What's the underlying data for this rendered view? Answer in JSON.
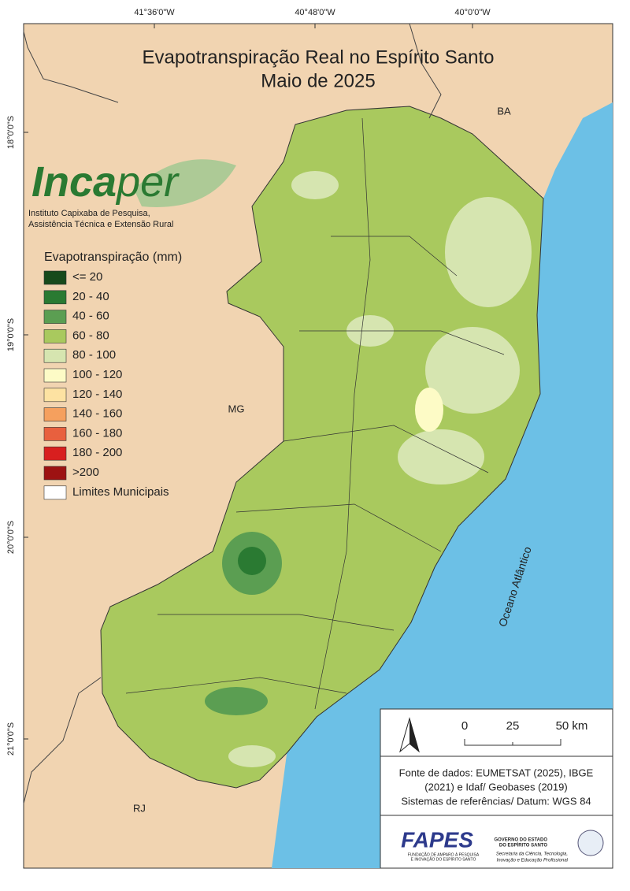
{
  "map": {
    "title": [
      "Evapotranspiração Real no Espírito Santo",
      "Maio de 2025"
    ],
    "longitude_labels": [
      "41°36'0\"W",
      "40°48'0\"W",
      "40°0'0\"W"
    ],
    "latitude_labels": [
      "18°0'0\"S",
      "19°0'0\"S",
      "20°0'0\"S",
      "21°0'0\"S"
    ],
    "logo": {
      "name_part1": "Inca",
      "name_part2": "per",
      "subtitle": [
        "Instituto Capixaba de Pesquisa,",
        "Assistência Técnica e Extensão Rural"
      ]
    },
    "legend": {
      "title": "Evapotranspiração (mm)",
      "items": [
        {
          "label": "<= 20",
          "color": "#174a1b"
        },
        {
          "label": "20 - 40",
          "color": "#2a7a32"
        },
        {
          "label": "40 - 60",
          "color": "#5b9e52"
        },
        {
          "label": "60 - 80",
          "color": "#a9c95e"
        },
        {
          "label": "80 - 100",
          "color": "#d6e5b0"
        },
        {
          "label": "100 - 120",
          "color": "#fdfbc6"
        },
        {
          "label": "120 - 140",
          "color": "#fde2a2"
        },
        {
          "label": "140 - 160",
          "color": "#f5a05e"
        },
        {
          "label": "160 - 180",
          "color": "#e8603e"
        },
        {
          "label": "180 - 200",
          "color": "#d81f1f"
        },
        {
          "label": ">200",
          "color": "#9d1212"
        },
        {
          "label": "Limites Municipais",
          "color": "#ffffff"
        }
      ]
    },
    "places": {
      "ba": "BA",
      "mg": "MG",
      "rj": "RJ",
      "ocean": "Oceano Atlântico"
    },
    "scale": [
      "0",
      "25",
      "50 km"
    ],
    "source": [
      "Fonte de dados: EUMETSAT (2025), IBGE",
      "(2021) e Idaf/ Geobases (2019)",
      "Sistemas de referências/ Datum: WGS 84"
    ],
    "footer": {
      "fapes": "FAPES",
      "fapes_sub": [
        "FUNDAÇÃO DE AMPARO À PESQUISA",
        "E INOVAÇÃO DO ESPÍRITO SANTO"
      ],
      "gov": [
        "GOVERNO DO ESTADO",
        "DO ESPÍRITO SANTO"
      ],
      "secretaria": [
        "Secretaria da Ciência, Tecnologia,",
        "Inovação e Educação Profissional"
      ]
    }
  }
}
